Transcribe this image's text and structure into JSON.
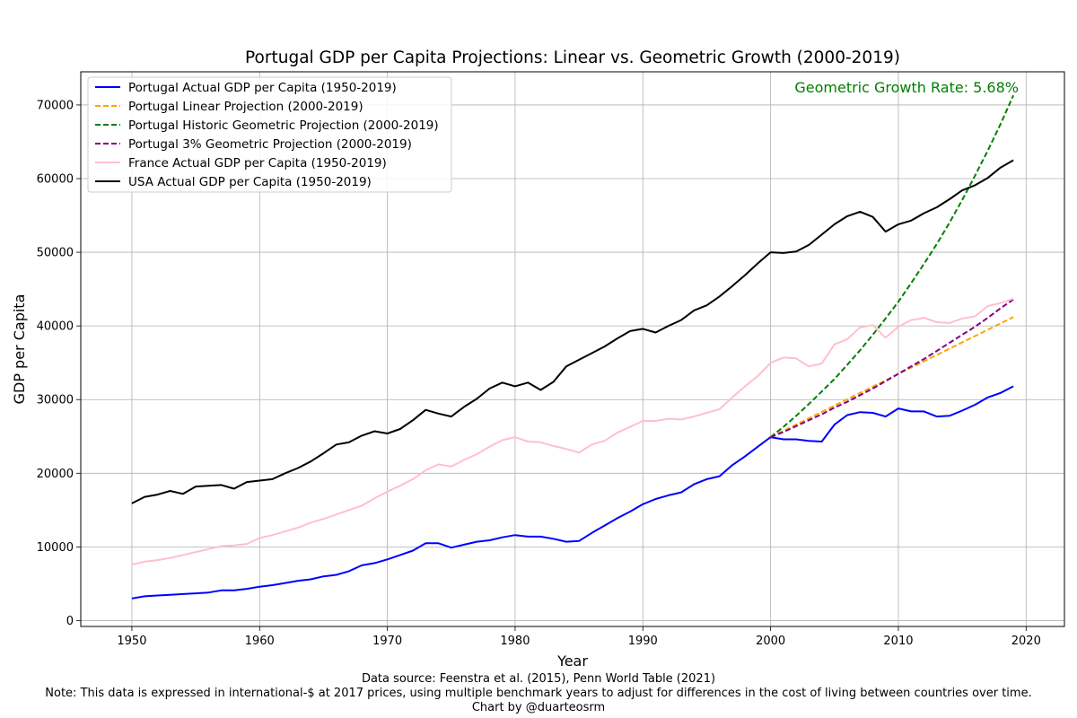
{
  "chart_data": {
    "type": "line",
    "title": "Portugal GDP per Capita Projections: Linear vs. Geometric Growth (2000-2019)",
    "xlabel": "Year",
    "ylabel": "GDP per Capita",
    "xlim": [
      1946,
      2023
    ],
    "ylim": [
      -800,
      74500
    ],
    "xticks": [
      1950,
      1960,
      1970,
      1980,
      1990,
      2000,
      2010,
      2020
    ],
    "yticks": [
      0,
      10000,
      20000,
      30000,
      40000,
      50000,
      60000,
      70000
    ],
    "grid": true,
    "legend_position": "top-left",
    "annotation": {
      "text": "Geometric Growth Rate: 5.68%",
      "color": "#008000",
      "position": "top-right"
    },
    "series": [
      {
        "name": "Portugal Actual GDP per Capita (1950-2019)",
        "color": "#0000ff",
        "dash": "solid",
        "x_start": 1950,
        "values": [
          3000,
          3300,
          3400,
          3500,
          3600,
          3700,
          3800,
          4100,
          4100,
          4300,
          4600,
          4800,
          5100,
          5400,
          5600,
          6000,
          6200,
          6700,
          7500,
          7800,
          8300,
          8900,
          9500,
          10500,
          10500,
          9900,
          10300,
          10700,
          10900,
          11300,
          11600,
          11400,
          11400,
          11100,
          10700,
          10800,
          11900,
          12900,
          13900,
          14800,
          15800,
          16500,
          17000,
          17400,
          18500,
          19200,
          19600,
          21100,
          22300,
          23600,
          24900,
          24600,
          24600,
          24400,
          24300,
          26600,
          27900,
          28300,
          28200,
          27700,
          28800,
          28400,
          28400,
          27700,
          27800,
          28500,
          29300,
          30300,
          30900,
          31800
        ]
      },
      {
        "name": "Portugal Linear Projection (2000-2019)",
        "color": "#ffa500",
        "dash": "dashed",
        "x": [
          2000,
          2019
        ],
        "values": [
          24900,
          41200
        ]
      },
      {
        "name": "Portugal Historic Geometric Projection (2000-2019)",
        "color": "#008000",
        "dash": "dashed",
        "x_start": 2000,
        "values": [
          24900,
          26300,
          27800,
          29400,
          31100,
          32800,
          34700,
          36700,
          38800,
          41000,
          43300,
          45800,
          48400,
          51100,
          54000,
          57100,
          60400,
          63800,
          67400,
          71300
        ]
      },
      {
        "name": "Portugal 3% Geometric Projection (2000-2019)",
        "color": "#800080",
        "dash": "dashed",
        "x_start": 2000,
        "values": [
          24900,
          25600,
          26400,
          27200,
          28000,
          28900,
          29700,
          30600,
          31500,
          32500,
          33500,
          34500,
          35500,
          36600,
          37700,
          38800,
          39900,
          41100,
          42400,
          43600
        ]
      },
      {
        "name": "France Actual GDP per Capita (1950-2019)",
        "color": "#ffc0cb",
        "dash": "solid",
        "x_start": 1950,
        "values": [
          7600,
          8000,
          8200,
          8500,
          8900,
          9300,
          9700,
          10100,
          10200,
          10400,
          11200,
          11600,
          12100,
          12600,
          13300,
          13800,
          14400,
          15000,
          15600,
          16600,
          17500,
          18300,
          19200,
          20400,
          21200,
          20900,
          21800,
          22600,
          23600,
          24500,
          24900,
          24300,
          24200,
          23700,
          23300,
          22800,
          23900,
          24400,
          25500,
          26300,
          27100,
          27100,
          27400,
          27300,
          27700,
          28200,
          28700,
          30300,
          31800,
          33200,
          35000,
          35700,
          35600,
          34500,
          34900,
          37500,
          38200,
          39800,
          40100,
          38400,
          39900,
          40800,
          41100,
          40500,
          40400,
          41000,
          41300,
          42700,
          43100,
          43700
        ]
      },
      {
        "name": "USA Actual GDP per Capita (1950-2019)",
        "color": "#000000",
        "dash": "solid",
        "x_start": 1950,
        "values": [
          15900,
          16800,
          17100,
          17600,
          17200,
          18200,
          18300,
          18400,
          17900,
          18800,
          19000,
          19200,
          20000,
          20700,
          21600,
          22700,
          23900,
          24200,
          25100,
          25700,
          25400,
          26000,
          27200,
          28600,
          28100,
          27700,
          29000,
          30100,
          31500,
          32300,
          31800,
          32300,
          31300,
          32400,
          34500,
          35400,
          36300,
          37200,
          38300,
          39300,
          39600,
          39100,
          40000,
          40800,
          42100,
          42800,
          44000,
          45400,
          46900,
          48500,
          50000,
          49900,
          50100,
          51000,
          52400,
          53800,
          54900,
          55500,
          54800,
          52800,
          53800,
          54300,
          55300,
          56100,
          57200,
          58400,
          59100,
          60100,
          61500,
          62500
        ]
      }
    ]
  },
  "footer": {
    "source": "Data source: Feenstra et al. (2015), Penn World Table (2021)",
    "note": "Note: This data is expressed in international-$ at 2017 prices, using multiple benchmark years to adjust for differences in the cost of living between countries over time.",
    "credit": "Chart by @duarteosrm"
  }
}
